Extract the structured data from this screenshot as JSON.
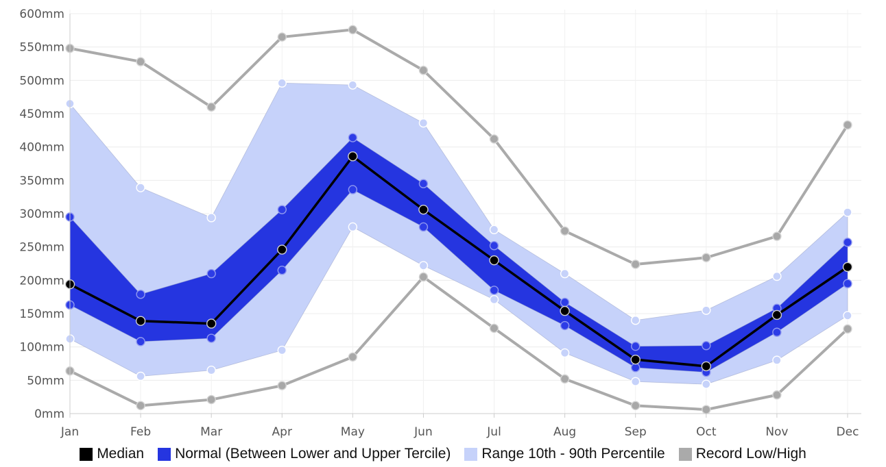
{
  "chart_data": {
    "type": "line",
    "categories": [
      "Jan",
      "Feb",
      "Mar",
      "Apr",
      "May",
      "Jun",
      "Jul",
      "Aug",
      "Sep",
      "Oct",
      "Nov",
      "Dec"
    ],
    "y_unit": "mm",
    "ylim": [
      0,
      600
    ],
    "y_ticks": [
      0,
      50,
      100,
      150,
      200,
      250,
      300,
      350,
      400,
      450,
      500,
      550,
      600
    ],
    "y_tick_labels": [
      "0mm",
      "50mm",
      "100mm",
      "150mm",
      "200mm",
      "250mm",
      "300mm",
      "350mm",
      "400mm",
      "450mm",
      "500mm",
      "550mm",
      "600mm"
    ],
    "grid": true,
    "legend_position": "bottom",
    "series": [
      {
        "name": "Record Low/High",
        "kind": "record_high",
        "color": "#aaaaaa",
        "values": [
          548,
          528,
          460,
          565,
          576,
          515,
          412,
          274,
          224,
          234,
          266,
          433
        ]
      },
      {
        "name": "Record Low/High",
        "kind": "record_low",
        "color": "#aaaaaa",
        "values": [
          64,
          12,
          21,
          42,
          85,
          205,
          128,
          52,
          12,
          6,
          28,
          127
        ]
      },
      {
        "name": "Range 10th - 90th Percentile",
        "kind": "p90",
        "color": "#c6d2fa",
        "values": [
          465,
          339,
          294,
          496,
          493,
          436,
          276,
          210,
          140,
          155,
          206,
          302
        ]
      },
      {
        "name": "Range 10th - 90th Percentile",
        "kind": "p10",
        "color": "#c6d2fa",
        "values": [
          112,
          56,
          65,
          95,
          280,
          222,
          171,
          91,
          48,
          44,
          80,
          147
        ]
      },
      {
        "name": "Normal (Between Lower and Upper Tercile)",
        "kind": "upper_tercile",
        "color": "#2535e0",
        "values": [
          295,
          179,
          210,
          306,
          414,
          345,
          252,
          167,
          101,
          102,
          158,
          257
        ]
      },
      {
        "name": "Normal (Between Lower and Upper Tercile)",
        "kind": "lower_tercile",
        "color": "#2535e0",
        "values": [
          163,
          108,
          113,
          215,
          336,
          280,
          185,
          132,
          69,
          62,
          122,
          195
        ]
      },
      {
        "name": "Median",
        "kind": "median",
        "color": "#000000",
        "values": [
          194,
          139,
          135,
          246,
          386,
          306,
          230,
          154,
          81,
          71,
          148,
          220
        ]
      }
    ]
  },
  "legend": [
    {
      "label": "Median",
      "color": "#000000"
    },
    {
      "label": "Normal (Between Lower and Upper Tercile)",
      "color": "#2535e0"
    },
    {
      "label": "Range 10th - 90th Percentile",
      "color": "#c6d2fa"
    },
    {
      "label": "Record Low/High",
      "color": "#aaaaaa"
    }
  ]
}
